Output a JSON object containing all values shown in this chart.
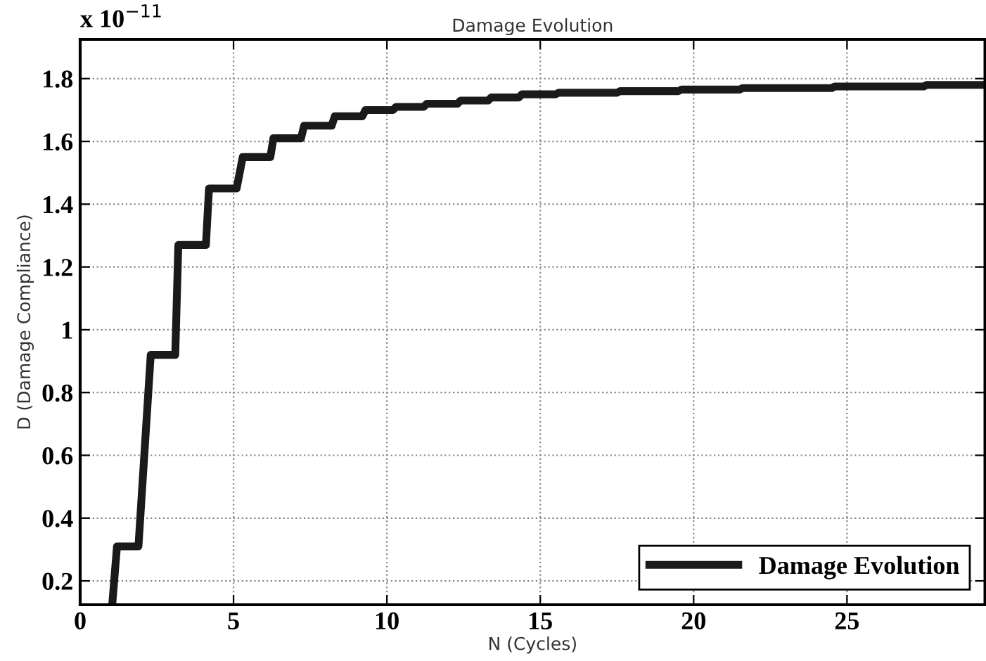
{
  "chart_data": {
    "type": "line",
    "title": "Damage Evolution",
    "xlabel": "N (Cycles)",
    "ylabel": "D (Damage Compliance)",
    "annotations": [
      "x 10$^{−11}$"
    ],
    "series": [
      {
        "name": "Damage Evolution",
        "color": "#1a1a1a",
        "x": [
          1.05,
          1.2,
          1.9,
          2.3,
          3.1,
          3.2,
          4.1,
          4.2,
          5.1,
          5.3,
          6.2,
          6.3,
          7.2,
          7.3,
          8.2,
          8.3,
          9.2,
          9.3,
          10.2,
          10.3,
          11.2,
          11.3,
          12.3,
          12.4,
          13.3,
          13.4,
          14.3,
          14.4,
          15.5,
          15.6,
          17.5,
          17.6,
          19.5,
          19.6,
          21.5,
          21.6,
          24.5,
          24.6,
          27.5,
          27.6,
          29.5
        ],
        "values": [
          0.13,
          0.31,
          0.31,
          0.92,
          0.92,
          1.27,
          1.27,
          1.45,
          1.45,
          1.55,
          1.55,
          1.61,
          1.61,
          1.65,
          1.65,
          1.68,
          1.68,
          1.7,
          1.7,
          1.71,
          1.71,
          1.72,
          1.72,
          1.73,
          1.73,
          1.74,
          1.74,
          1.75,
          1.75,
          1.755,
          1.755,
          1.76,
          1.76,
          1.765,
          1.765,
          1.77,
          1.77,
          1.775,
          1.775,
          1.78,
          1.78
        ]
      }
    ],
    "xlim": [
      0,
      29.5
    ],
    "ylim": [
      0.124,
      1.925
    ],
    "xticks": [
      0,
      5,
      10,
      15,
      20,
      25
    ],
    "yticks": [
      0.2,
      0.4,
      0.6,
      0.8,
      1,
      1.2,
      1.4,
      1.6,
      1.8
    ],
    "grid": true,
    "legend": "bottom right",
    "line_style": "solid",
    "marker": "none"
  }
}
